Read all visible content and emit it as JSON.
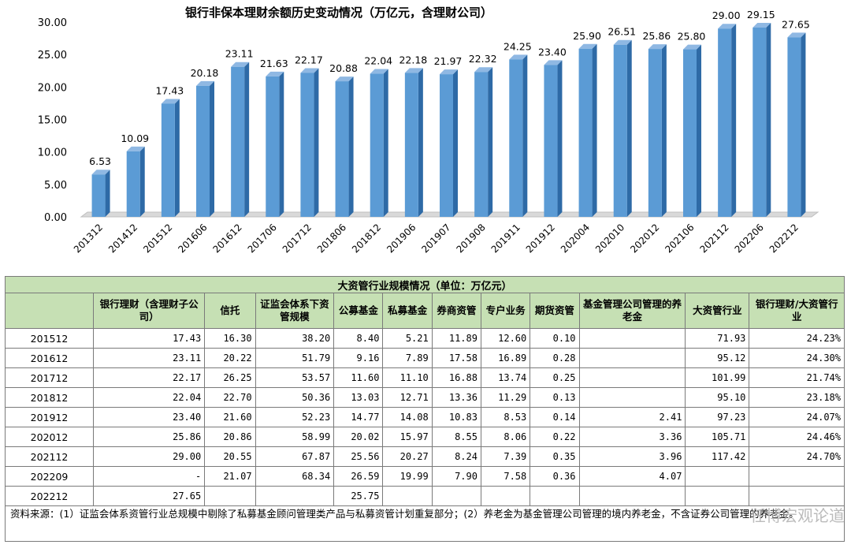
{
  "chart_data": {
    "type": "bar",
    "title": "银行非保本理财余额历史变动情况（万亿元，含理财公司）",
    "categories": [
      "201312",
      "201412",
      "201512",
      "201606",
      "201612",
      "201706",
      "201712",
      "201806",
      "201812",
      "201906",
      "201907",
      "201908",
      "201911",
      "201912",
      "202004",
      "202010",
      "202012",
      "202106",
      "202112",
      "202206",
      "202212"
    ],
    "values": [
      6.53,
      10.09,
      17.43,
      20.18,
      23.11,
      21.63,
      22.17,
      20.88,
      22.04,
      22.18,
      21.97,
      22.32,
      24.25,
      23.4,
      25.9,
      26.51,
      25.86,
      25.8,
      29.0,
      29.15,
      27.65
    ],
    "value_labels": [
      "6.53",
      "10.09",
      "17.43",
      "20.18",
      "23.11",
      "21.63",
      "22.17",
      "20.88",
      "22.04",
      "22.18",
      "21.97",
      "22.32",
      "24.25",
      "23.40",
      "25.90",
      "26.51",
      "25.86",
      "25.80",
      "29.00",
      "29.15",
      "27.65"
    ],
    "y_ticks": [
      "0.00",
      "5.00",
      "10.00",
      "15.00",
      "20.00",
      "25.00",
      "30.00"
    ],
    "ylim": [
      0,
      30
    ],
    "grid": false,
    "bar_color": "#5b9bd5",
    "xlabel": "",
    "ylabel": ""
  },
  "table": {
    "title": "大资管行业规模情况（单位：万亿元）",
    "headers": [
      "",
      "银行理财（含理财子公司）",
      "信托",
      "证监会体系下资管规模",
      "公募基金",
      "私募基金",
      "券商资管",
      "专户业务",
      "期货资管",
      "基金管理公司管理的养老金",
      "大资管行业",
      "银行理财/大资管行业"
    ],
    "rows": [
      [
        "201512",
        "17.43",
        "16.30",
        "38.20",
        "8.40",
        "5.21",
        "11.89",
        "12.60",
        "0.10",
        "",
        "71.93",
        "24.23%"
      ],
      [
        "201612",
        "23.11",
        "20.22",
        "51.79",
        "9.16",
        "7.89",
        "17.58",
        "16.89",
        "0.28",
        "",
        "95.12",
        "24.30%"
      ],
      [
        "201712",
        "22.17",
        "26.25",
        "53.57",
        "11.60",
        "11.10",
        "16.88",
        "13.74",
        "0.25",
        "",
        "101.99",
        "21.74%"
      ],
      [
        "201812",
        "22.04",
        "22.70",
        "50.36",
        "13.03",
        "12.71",
        "13.36",
        "11.29",
        "0.13",
        "",
        "95.10",
        "23.18%"
      ],
      [
        "201912",
        "23.40",
        "21.60",
        "52.23",
        "14.77",
        "14.08",
        "10.83",
        "8.53",
        "0.14",
        "2.41",
        "97.23",
        "24.07%"
      ],
      [
        "202012",
        "25.86",
        "20.86",
        "58.99",
        "20.02",
        "15.97",
        "8.55",
        "8.06",
        "0.22",
        "3.36",
        "105.71",
        "24.46%"
      ],
      [
        "202112",
        "29.00",
        "20.55",
        "67.87",
        "25.56",
        "20.27",
        "8.24",
        "7.39",
        "0.35",
        "3.96",
        "117.42",
        "24.70%"
      ],
      [
        "202209",
        "-",
        "21.07",
        "68.34",
        "26.59",
        "19.99",
        "7.90",
        "7.58",
        "0.36",
        "4.07",
        "",
        ""
      ],
      [
        "202212",
        "27.65",
        "",
        "",
        "25.75",
        "",
        "",
        "",
        "",
        "",
        "",
        ""
      ]
    ],
    "note": "资料来源：(1）证监会体系资管行业总规模中剔除了私募基金顾问管理类产品与私募资管计划重复部分；(2）养老金为基金管理公司管理的境内养老金，不含证券公司管理的养老金。"
  },
  "watermark": "任博宏观论道"
}
